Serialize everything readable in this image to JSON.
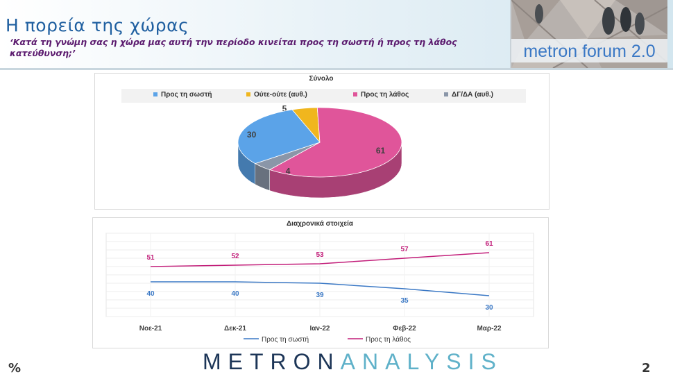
{
  "header": {
    "title": "Η πορεία της χώρας",
    "subtitle": "‘Κατά τη γνώμη σας η χώρα μας αυτή την περίοδο κινείται προς τη σωστή ή προς τη λάθος κατεύθυνση;’",
    "logo_text": "metron forum 2.0"
  },
  "footer": {
    "percent_symbol": "%",
    "page_number": "2",
    "brand_part1": "METRON",
    "brand_part2": "ANALYSIS"
  },
  "colors": {
    "right": "#5ba3e8",
    "neutral": "#f0b61e",
    "wrong": "#e0559a",
    "dk": "#8a96a8",
    "line_right": "#3a78c5",
    "line_wrong": "#c21d79"
  },
  "chart_data": [
    {
      "type": "pie",
      "title": "Σύνολο",
      "categories": [
        "Προς τη σωστή",
        "Ούτε-ούτε (αυθ.)",
        "Προς τη λάθος",
        "ΔΓ/ΔΑ (αυθ.)"
      ],
      "values": [
        30,
        5,
        61,
        4
      ],
      "legend_position": "top",
      "style": "3d"
    },
    {
      "type": "line",
      "title": "Διαχρονικά στοιχεία",
      "categories": [
        "Νοε-21",
        "Δεκ-21",
        "Ιαν-22",
        "Φεβ-22",
        "Μαρ-22"
      ],
      "series": [
        {
          "name": "Προς τη σωστή",
          "values": [
            40,
            40,
            39,
            35,
            30
          ]
        },
        {
          "name": "Προς τη λάθος",
          "values": [
            51,
            52,
            53,
            57,
            61
          ]
        }
      ],
      "ylim": [
        0,
        100
      ],
      "grid": true,
      "legend_position": "bottom"
    }
  ]
}
